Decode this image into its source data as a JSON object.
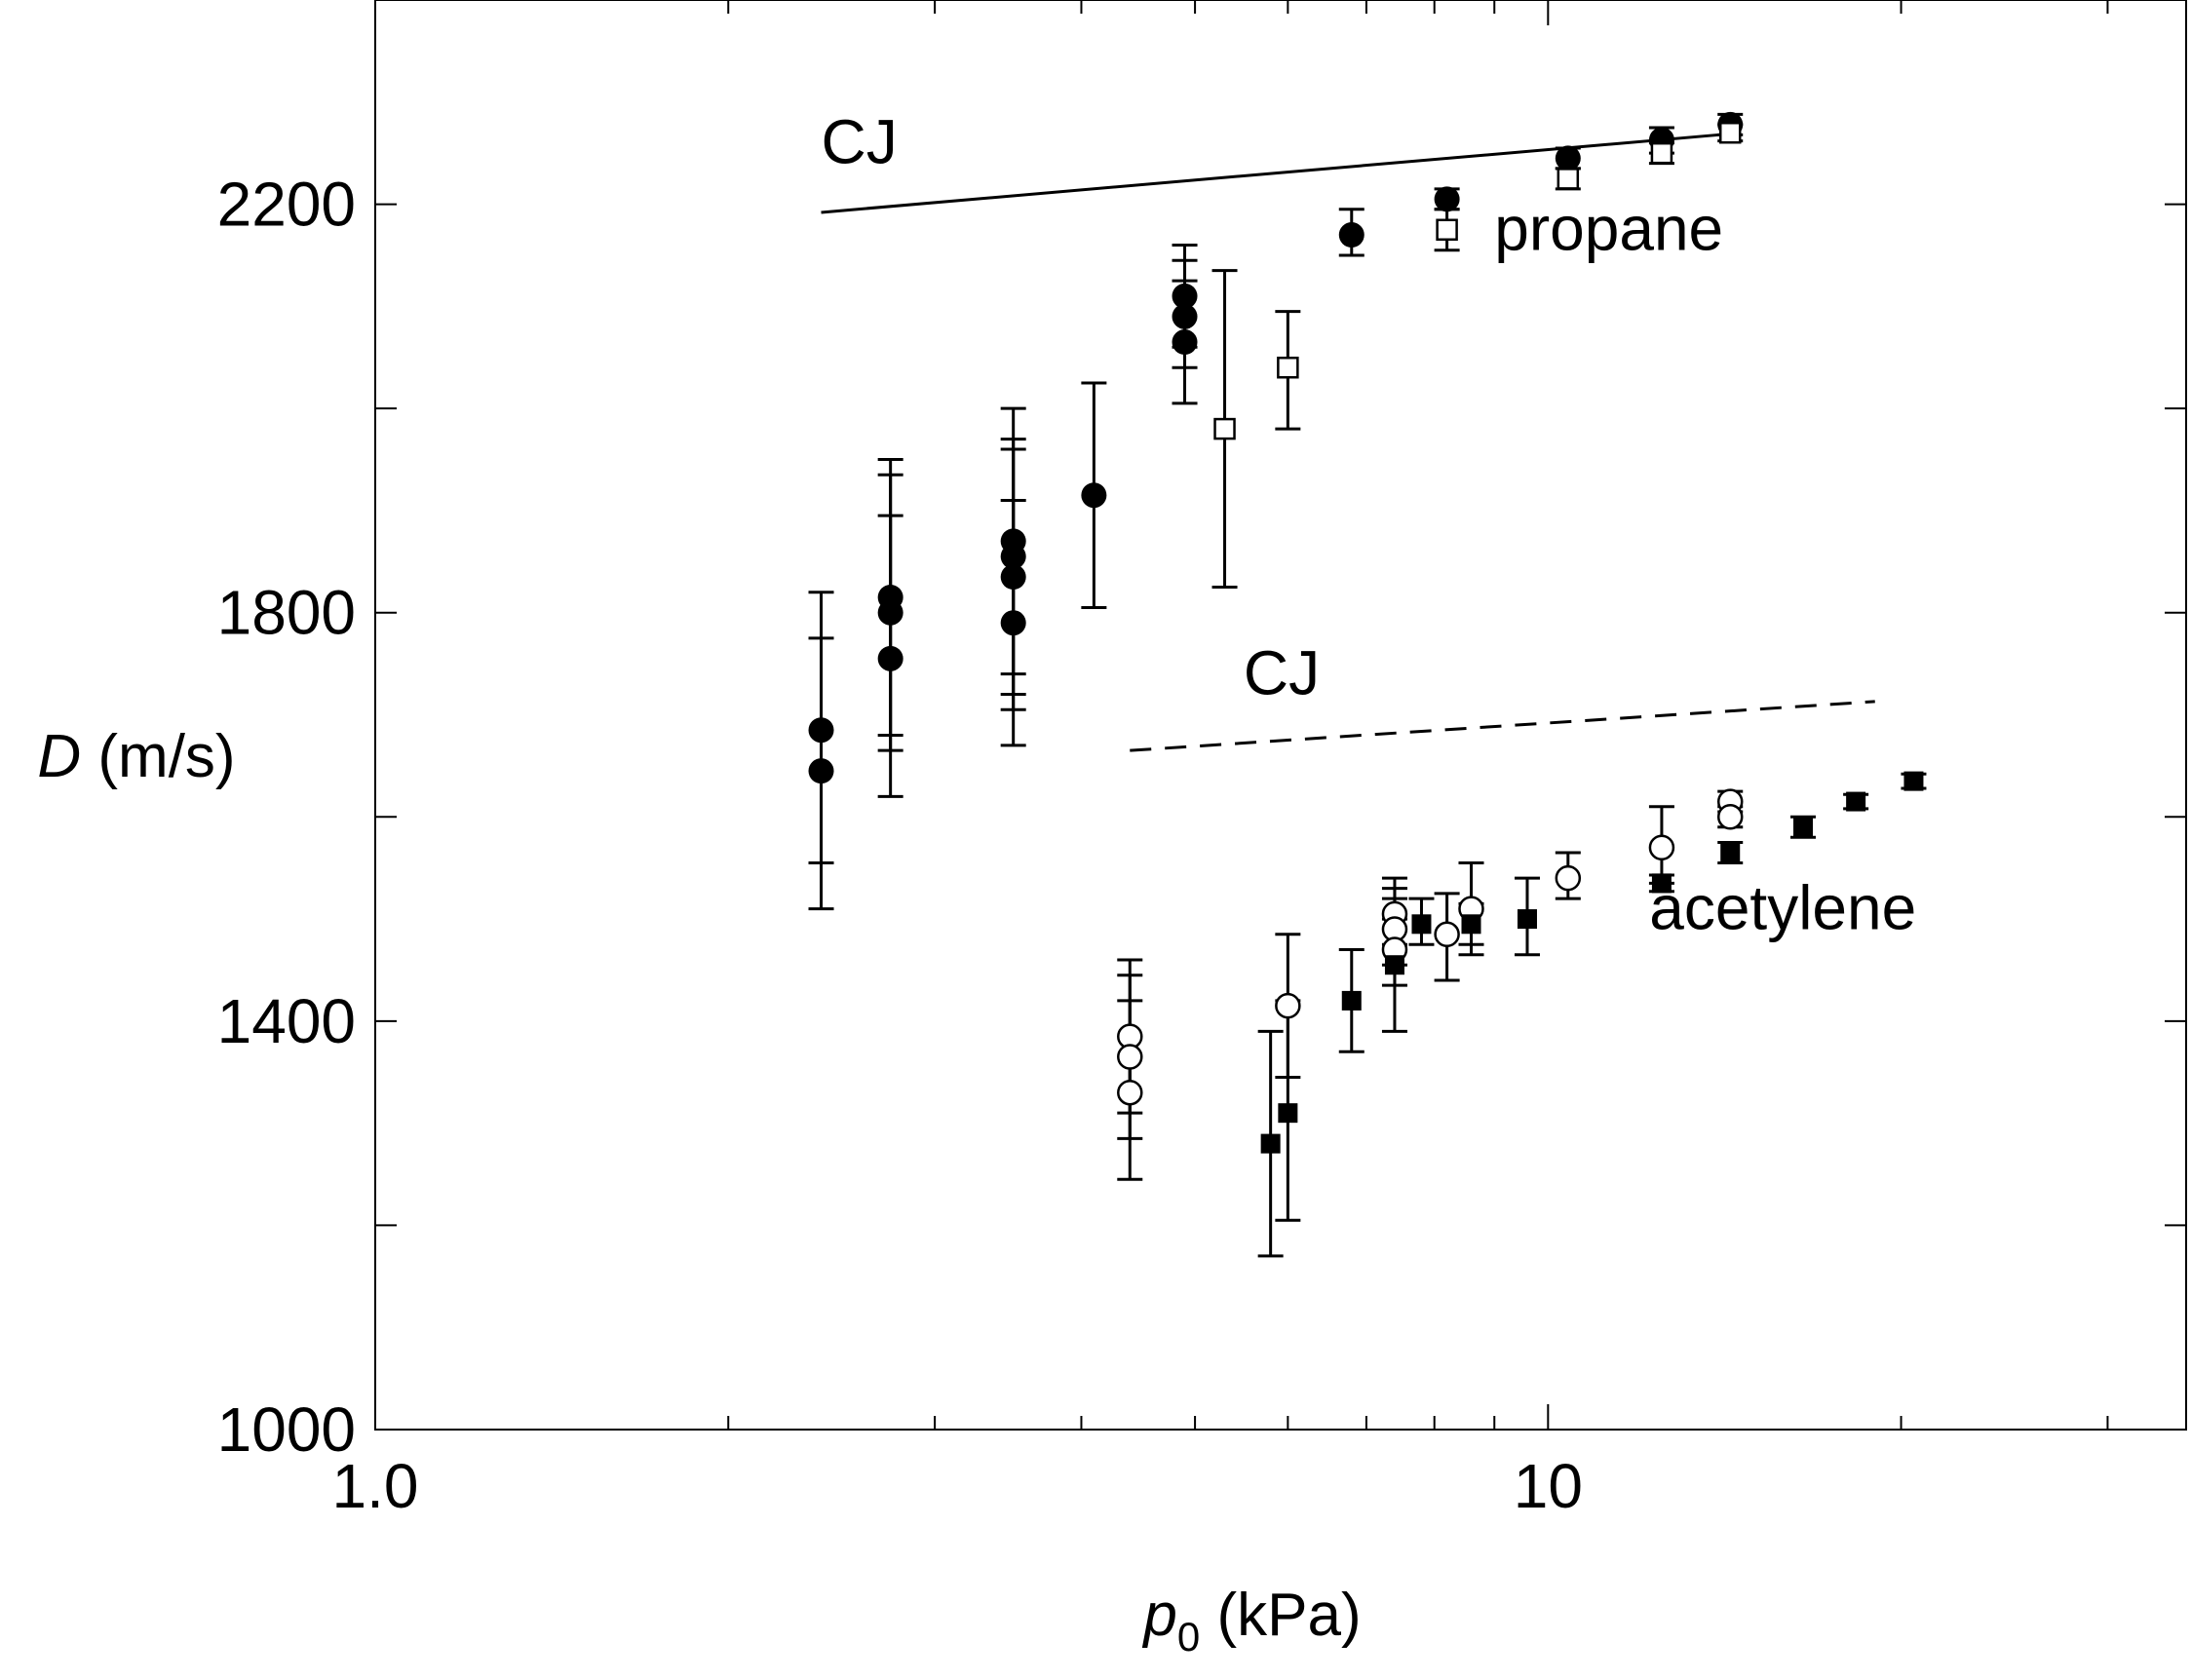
{
  "chart_data": {
    "type": "scatter",
    "title": "",
    "xlabel": "p0 (kPa)",
    "xlabel_main": "p",
    "xlabel_sub": "0",
    "xlabel_unit": " (kPa)",
    "ylabel": "D (m/s)",
    "ylabel_var": "D",
    "ylabel_unit": " (m/s)",
    "x_scale": "log",
    "xlim": [
      1.0,
      35
    ],
    "ylim": [
      1000,
      2400
    ],
    "x_ticks": [
      {
        "value": 1.0,
        "label": "1.0"
      },
      {
        "value": 10,
        "label": "10"
      }
    ],
    "x_minor_ticks": [
      2,
      3,
      4,
      5,
      6,
      7,
      8,
      9,
      20,
      30
    ],
    "y_ticks": [
      1000,
      1400,
      1800,
      2200
    ],
    "y_ticks_labels": [
      "1000",
      "1400",
      "1800",
      "2200"
    ],
    "y_minor_ticks": [
      1200,
      1600,
      2000
    ],
    "grid": false,
    "annotations": [
      {
        "text": "CJ",
        "x": 2.4,
        "y": 2240
      },
      {
        "text": "propane",
        "x": 9.0,
        "y": 2155
      },
      {
        "text": "CJ",
        "x": 5.5,
        "y": 1720
      },
      {
        "text": "acetylene",
        "x": 12.2,
        "y": 1490
      }
    ],
    "series": [
      {
        "name": "propane CJ",
        "kind": "line",
        "dash": "solid",
        "points": [
          [
            2.4,
            2192
          ],
          [
            14.0,
            2268
          ]
        ]
      },
      {
        "name": "acetylene CJ",
        "kind": "line",
        "dash": "dashed",
        "points": [
          [
            4.4,
            1665
          ],
          [
            19.0,
            1713
          ]
        ]
      },
      {
        "name": "propane (filled circles)",
        "kind": "marker",
        "marker": "circle",
        "filled": true,
        "points": [
          {
            "x": 2.4,
            "y": 1685,
            "lo": 1510,
            "hi": 1820
          },
          {
            "x": 2.4,
            "y": 1645,
            "lo": 1555,
            "hi": 1775
          },
          {
            "x": 2.75,
            "y": 1815,
            "lo": 1680,
            "hi": 1950
          },
          {
            "x": 2.75,
            "y": 1800,
            "lo": 1665,
            "hi": 1935
          },
          {
            "x": 2.75,
            "y": 1755,
            "lo": 1620,
            "hi": 1895
          },
          {
            "x": 3.5,
            "y": 1870,
            "lo": 1740,
            "hi": 2000
          },
          {
            "x": 3.5,
            "y": 1855,
            "lo": 1720,
            "hi": 1970
          },
          {
            "x": 3.5,
            "y": 1835,
            "lo": 1705,
            "hi": 1960
          },
          {
            "x": 3.5,
            "y": 1790,
            "lo": 1670,
            "hi": 1910
          },
          {
            "x": 4.1,
            "y": 1915,
            "lo": 1805,
            "hi": 2025
          },
          {
            "x": 4.9,
            "y": 2110,
            "lo": 2060,
            "hi": 2160
          },
          {
            "x": 4.9,
            "y": 2090,
            "lo": 2040,
            "hi": 2145
          },
          {
            "x": 4.9,
            "y": 2065,
            "lo": 2005,
            "hi": 2125
          },
          {
            "x": 6.8,
            "y": 2170,
            "lo": 2150,
            "hi": 2195
          },
          {
            "x": 8.2,
            "y": 2205,
            "lo": 2195,
            "hi": 2215
          },
          {
            "x": 10.4,
            "y": 2245,
            "lo": 2235,
            "hi": 2255
          },
          {
            "x": 12.5,
            "y": 2263,
            "lo": 2250,
            "hi": 2275
          },
          {
            "x": 14.3,
            "y": 2278,
            "lo": 2268,
            "hi": 2288
          }
        ]
      },
      {
        "name": "propane (open squares)",
        "kind": "marker",
        "marker": "square",
        "filled": false,
        "points": [
          {
            "x": 5.3,
            "y": 1980,
            "lo": 1825,
            "hi": 2135
          },
          {
            "x": 6.0,
            "y": 2040,
            "lo": 1980,
            "hi": 2095
          },
          {
            "x": 8.2,
            "y": 2175,
            "lo": 2155,
            "hi": 2195
          },
          {
            "x": 10.4,
            "y": 2225,
            "lo": 2215,
            "hi": 2235
          },
          {
            "x": 12.5,
            "y": 2250,
            "lo": 2240,
            "hi": 2260
          },
          {
            "x": 14.3,
            "y": 2270,
            "lo": 2262,
            "hi": 2278
          }
        ]
      },
      {
        "name": "acetylene (open circles)",
        "kind": "marker",
        "marker": "circle",
        "filled": false,
        "points": [
          {
            "x": 4.4,
            "y": 1385,
            "lo": 1310,
            "hi": 1460
          },
          {
            "x": 4.4,
            "y": 1365,
            "lo": 1285,
            "hi": 1445
          },
          {
            "x": 4.4,
            "y": 1330,
            "lo": 1245,
            "hi": 1420
          },
          {
            "x": 6.0,
            "y": 1415,
            "lo": 1345,
            "hi": 1485
          },
          {
            "x": 7.4,
            "y": 1505,
            "lo": 1475,
            "hi": 1540
          },
          {
            "x": 7.4,
            "y": 1490,
            "lo": 1455,
            "hi": 1530
          },
          {
            "x": 7.4,
            "y": 1470,
            "lo": 1435,
            "hi": 1520
          },
          {
            "x": 8.2,
            "y": 1485,
            "lo": 1440,
            "hi": 1525
          },
          {
            "x": 8.6,
            "y": 1510,
            "lo": 1465,
            "hi": 1555
          },
          {
            "x": 10.4,
            "y": 1540,
            "lo": 1520,
            "hi": 1565
          },
          {
            "x": 12.5,
            "y": 1570,
            "lo": 1535,
            "hi": 1610
          },
          {
            "x": 14.3,
            "y": 1615,
            "lo": 1605,
            "hi": 1625
          },
          {
            "x": 14.3,
            "y": 1600,
            "lo": 1590,
            "hi": 1610
          }
        ]
      },
      {
        "name": "acetylene (filled squares)",
        "kind": "marker",
        "marker": "square",
        "filled": true,
        "points": [
          {
            "x": 5.8,
            "y": 1280,
            "lo": 1170,
            "hi": 1390
          },
          {
            "x": 6.0,
            "y": 1310,
            "lo": 1205,
            "hi": 1420
          },
          {
            "x": 6.8,
            "y": 1420,
            "lo": 1370,
            "hi": 1470
          },
          {
            "x": 7.4,
            "y": 1455,
            "lo": 1390,
            "hi": 1500
          },
          {
            "x": 7.8,
            "y": 1495,
            "lo": 1475,
            "hi": 1520
          },
          {
            "x": 8.6,
            "y": 1495,
            "lo": 1475,
            "hi": 1515
          },
          {
            "x": 9.6,
            "y": 1500,
            "lo": 1465,
            "hi": 1540
          },
          {
            "x": 12.5,
            "y": 1535,
            "lo": 1527,
            "hi": 1543
          },
          {
            "x": 14.3,
            "y": 1565,
            "lo": 1555,
            "hi": 1575
          },
          {
            "x": 16.5,
            "y": 1590,
            "lo": 1580,
            "hi": 1600
          },
          {
            "x": 18.3,
            "y": 1615,
            "lo": 1608,
            "hi": 1622
          },
          {
            "x": 20.5,
            "y": 1635,
            "lo": 1628,
            "hi": 1642
          }
        ]
      }
    ]
  }
}
